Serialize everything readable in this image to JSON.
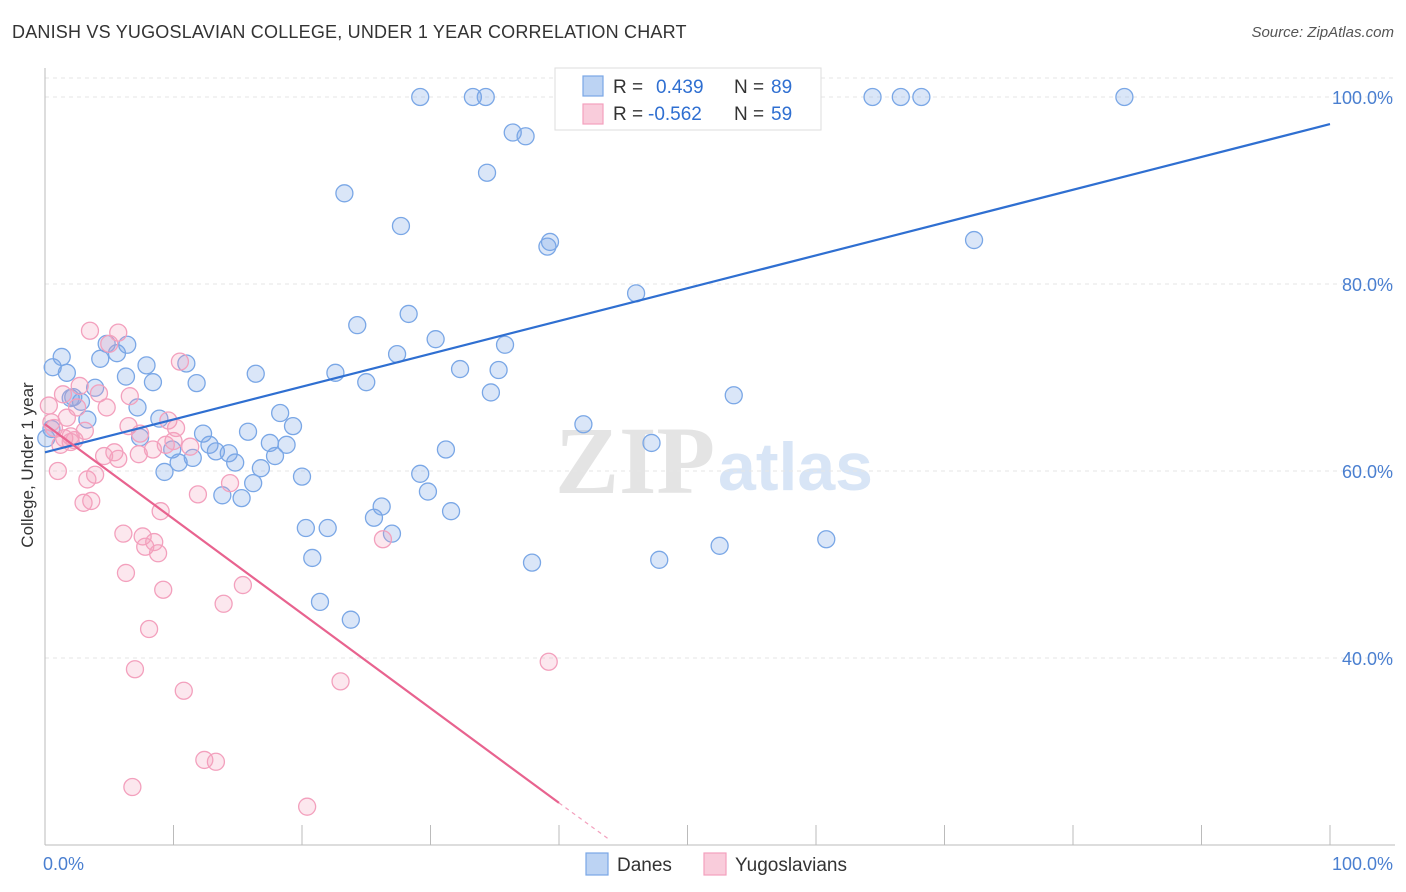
{
  "header": {
    "title": "DANISH VS YUGOSLAVIAN COLLEGE, UNDER 1 YEAR CORRELATION CHART",
    "source": "Source: ZipAtlas.com"
  },
  "watermark": {
    "zip": "ZIP",
    "atlas": "atlas"
  },
  "chart_data": {
    "type": "scatter",
    "title": "DANISH VS YUGOSLAVIAN COLLEGE, UNDER 1 YEAR CORRELATION CHART",
    "xlabel": "",
    "ylabel": "College, Under 1 year",
    "xlim": [
      0,
      100
    ],
    "ylim": [
      20,
      100
    ],
    "x_tick_labels": {
      "left": "0.0%",
      "right": "100.0%"
    },
    "y_tick_labels": [
      {
        "value": 100,
        "label": "100.0%"
      },
      {
        "value": 80,
        "label": "80.0%"
      },
      {
        "value": 60,
        "label": "60.0%"
      },
      {
        "value": 40,
        "label": "40.0%"
      }
    ],
    "legend_stats": [
      {
        "r_label": "R =",
        "r_value": "0.439",
        "n_label": "N =",
        "n_value": "89"
      },
      {
        "r_label": "R =",
        "r_value": "-0.562",
        "n_label": "N =",
        "n_value": "59"
      }
    ],
    "series": [
      {
        "name": "Danes",
        "color": "#7aa7e6",
        "line_color": "#2f6fd1",
        "trend": {
          "x0": 0,
          "y0": 62.0,
          "x1": 100,
          "y1": 97.1
        },
        "points": [
          [
            0.1,
            63.5
          ],
          [
            0.5,
            64.5
          ],
          [
            0.6,
            71.1
          ],
          [
            1.3,
            72.2
          ],
          [
            1.7,
            70.5
          ],
          [
            2.2,
            67.9
          ],
          [
            2.8,
            67.4
          ],
          [
            3.3,
            65.5
          ],
          [
            3.9,
            68.9
          ],
          [
            4.3,
            72.0
          ],
          [
            4.8,
            73.6
          ],
          [
            5.6,
            72.6
          ],
          [
            6.4,
            73.5
          ],
          [
            6.3,
            70.1
          ],
          [
            7.4,
            63.6
          ],
          [
            7.9,
            71.3
          ],
          [
            8.4,
            69.5
          ],
          [
            8.9,
            65.6
          ],
          [
            9.3,
            59.9
          ],
          [
            9.9,
            62.3
          ],
          [
            10.4,
            60.9
          ],
          [
            11.0,
            71.5
          ],
          [
            11.8,
            69.4
          ],
          [
            12.3,
            64.0
          ],
          [
            12.8,
            62.8
          ],
          [
            13.3,
            62.1
          ],
          [
            13.8,
            57.4
          ],
          [
            14.3,
            61.9
          ],
          [
            14.8,
            60.9
          ],
          [
            15.3,
            57.1
          ],
          [
            15.8,
            64.2
          ],
          [
            16.4,
            70.4
          ],
          [
            16.8,
            60.3
          ],
          [
            17.5,
            63.0
          ],
          [
            17.9,
            61.6
          ],
          [
            18.3,
            66.2
          ],
          [
            18.8,
            62.8
          ],
          [
            19.3,
            64.8
          ],
          [
            20.0,
            59.4
          ],
          [
            20.3,
            53.9
          ],
          [
            20.8,
            50.7
          ],
          [
            21.4,
            46.0
          ],
          [
            22.0,
            53.9
          ],
          [
            22.6,
            70.5
          ],
          [
            23.3,
            89.7
          ],
          [
            23.8,
            44.1
          ],
          [
            24.3,
            75.6
          ],
          [
            25.0,
            69.5
          ],
          [
            25.6,
            55.0
          ],
          [
            26.2,
            56.2
          ],
          [
            27.0,
            53.3
          ],
          [
            27.4,
            72.5
          ],
          [
            27.7,
            86.2
          ],
          [
            28.3,
            76.8
          ],
          [
            29.2,
            59.7
          ],
          [
            29.8,
            57.8
          ],
          [
            30.4,
            74.1
          ],
          [
            31.2,
            62.3
          ],
          [
            31.6,
            55.7
          ],
          [
            32.3,
            70.9
          ],
          [
            33.3,
            100.0
          ],
          [
            34.3,
            100.0
          ],
          [
            34.4,
            91.9
          ],
          [
            34.7,
            68.4
          ],
          [
            35.3,
            70.8
          ],
          [
            35.8,
            73.5
          ],
          [
            36.4,
            96.2
          ],
          [
            37.4,
            95.8
          ],
          [
            37.9,
            50.2
          ],
          [
            39.1,
            84.0
          ],
          [
            39.3,
            84.5
          ],
          [
            41.9,
            65.0
          ],
          [
            42.7,
            100.0
          ],
          [
            46.0,
            79.0
          ],
          [
            47.2,
            63.0
          ],
          [
            47.8,
            50.5
          ],
          [
            52.5,
            52.0
          ],
          [
            53.6,
            68.1
          ],
          [
            60.8,
            52.7
          ],
          [
            64.4,
            100.0
          ],
          [
            66.6,
            100.0
          ],
          [
            68.2,
            100.0
          ],
          [
            72.3,
            84.7
          ],
          [
            84.0,
            100.0
          ],
          [
            29.2,
            100.0
          ],
          [
            2.0,
            67.8
          ],
          [
            11.5,
            61.4
          ],
          [
            7.2,
            66.8
          ],
          [
            16.2,
            58.7
          ]
        ]
      },
      {
        "name": "Yugoslavians",
        "color": "#f3a0bd",
        "line_color": "#e8638f",
        "trend": {
          "x0": 0,
          "y0": 65.0,
          "x1": 40,
          "y1": 24.5,
          "dash_to_x": 44,
          "dash_to_y": 20.5
        },
        "points": [
          [
            0.3,
            67.0
          ],
          [
            0.5,
            65.2
          ],
          [
            0.7,
            64.6
          ],
          [
            1.0,
            60.0
          ],
          [
            1.2,
            62.8
          ],
          [
            1.4,
            68.2
          ],
          [
            1.7,
            65.7
          ],
          [
            2.0,
            63.7
          ],
          [
            2.3,
            63.3
          ],
          [
            2.7,
            69.1
          ],
          [
            3.0,
            56.6
          ],
          [
            3.3,
            59.1
          ],
          [
            3.6,
            56.8
          ],
          [
            3.9,
            59.6
          ],
          [
            4.2,
            68.3
          ],
          [
            4.6,
            61.6
          ],
          [
            5.0,
            73.6
          ],
          [
            5.4,
            62.0
          ],
          [
            5.7,
            61.3
          ],
          [
            6.1,
            53.3
          ],
          [
            6.3,
            49.1
          ],
          [
            6.6,
            68.0
          ],
          [
            7.0,
            38.8
          ],
          [
            7.3,
            61.8
          ],
          [
            7.6,
            53.0
          ],
          [
            7.8,
            51.9
          ],
          [
            8.1,
            43.1
          ],
          [
            8.5,
            52.4
          ],
          [
            8.8,
            51.2
          ],
          [
            9.0,
            55.7
          ],
          [
            9.2,
            47.3
          ],
          [
            9.6,
            65.4
          ],
          [
            10.0,
            63.2
          ],
          [
            10.5,
            71.7
          ],
          [
            10.8,
            36.5
          ],
          [
            11.3,
            62.6
          ],
          [
            11.9,
            57.5
          ],
          [
            12.4,
            29.1
          ],
          [
            13.3,
            28.9
          ],
          [
            13.9,
            45.8
          ],
          [
            14.4,
            58.7
          ],
          [
            15.4,
            47.8
          ],
          [
            20.4,
            24.1
          ],
          [
            23.0,
            37.5
          ],
          [
            26.3,
            52.7
          ],
          [
            39.2,
            39.6
          ],
          [
            3.5,
            75.0
          ],
          [
            5.7,
            74.8
          ],
          [
            1.5,
            63.5
          ],
          [
            2.5,
            66.8
          ],
          [
            8.4,
            62.3
          ],
          [
            4.8,
            66.8
          ],
          [
            6.5,
            64.8
          ],
          [
            9.4,
            62.8
          ],
          [
            3.1,
            64.3
          ],
          [
            2.0,
            63.1
          ],
          [
            6.8,
            26.2
          ],
          [
            7.4,
            64.0
          ],
          [
            10.2,
            64.6
          ]
        ]
      }
    ]
  }
}
